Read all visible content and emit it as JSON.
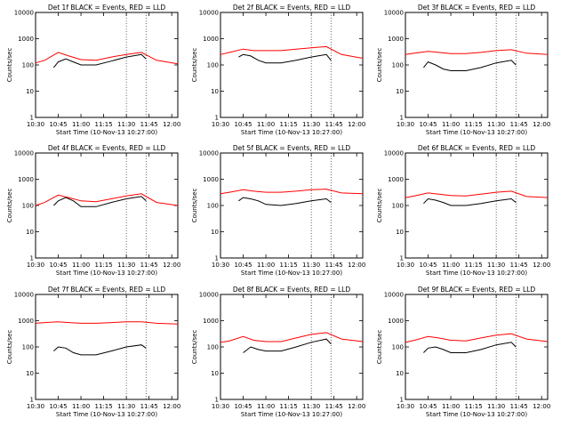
{
  "colors": {
    "events": "#000000",
    "lld": "#ff0000",
    "axis": "#000000",
    "background": "#ffffff"
  },
  "shared": {
    "xlabel": "Start Time (10-Nov-13 10:27:00)",
    "ylabel": "Counts/sec",
    "x_ticks": [
      "10:30",
      "10:45",
      "11:00",
      "11:15",
      "11:30",
      "11:45",
      "12:00"
    ],
    "x_range": [
      "10:30",
      "12:04"
    ],
    "y_ticks": [
      "1",
      "10",
      "100",
      "1000",
      "10000"
    ],
    "y_range": [
      1,
      10000
    ],
    "y_scale": "log"
  },
  "chart_data": [
    {
      "type": "line",
      "title": "Det 1f BLACK = Events, RED = LLD",
      "scale": 1.0,
      "series": [
        {
          "name": "Events",
          "points": [
            [
              "10:42",
              80
            ],
            [
              "10:45",
              130
            ],
            [
              "10:50",
              170
            ],
            [
              "10:55",
              130
            ],
            [
              "11:00",
              100
            ],
            [
              "11:10",
              100
            ],
            [
              "11:20",
              140
            ],
            [
              "11:30",
              200
            ],
            [
              "11:40",
              250
            ],
            [
              "11:43",
              170
            ]
          ]
        },
        {
          "name": "LLD",
          "points": [
            [
              "10:30",
              120
            ],
            [
              "10:36",
              150
            ],
            [
              "10:45",
              300
            ],
            [
              "10:52",
              220
            ],
            [
              "11:00",
              160
            ],
            [
              "11:10",
              150
            ],
            [
              "11:20",
              200
            ],
            [
              "11:30",
              250
            ],
            [
              "11:40",
              300
            ],
            [
              "11:50",
              150
            ],
            [
              "12:04",
              110
            ]
          ]
        }
      ]
    },
    {
      "type": "line",
      "title": "Det 2f BLACK = Events, RED = LLD",
      "scale": 1.0,
      "series": [
        {
          "name": "Events",
          "points": [
            [
              "10:42",
              200
            ],
            [
              "10:45",
              250
            ],
            [
              "10:50",
              220
            ],
            [
              "10:55",
              150
            ],
            [
              "11:00",
              120
            ],
            [
              "11:10",
              120
            ],
            [
              "11:20",
              150
            ],
            [
              "11:30",
              200
            ],
            [
              "11:40",
              250
            ],
            [
              "11:43",
              150
            ]
          ]
        },
        {
          "name": "LLD",
          "points": [
            [
              "10:30",
              250
            ],
            [
              "10:36",
              300
            ],
            [
              "10:45",
              400
            ],
            [
              "10:52",
              350
            ],
            [
              "11:00",
              350
            ],
            [
              "11:10",
              350
            ],
            [
              "11:20",
              400
            ],
            [
              "11:30",
              450
            ],
            [
              "11:40",
              500
            ],
            [
              "11:50",
              250
            ],
            [
              "12:04",
              180
            ]
          ]
        }
      ]
    },
    {
      "type": "line",
      "title": "Det 3f BLACK = Events, RED = LLD",
      "scale": 1.0,
      "series": [
        {
          "name": "Events",
          "points": [
            [
              "10:42",
              80
            ],
            [
              "10:45",
              130
            ],
            [
              "10:50",
              100
            ],
            [
              "10:55",
              70
            ],
            [
              "11:00",
              60
            ],
            [
              "11:10",
              60
            ],
            [
              "11:20",
              80
            ],
            [
              "11:30",
              120
            ],
            [
              "11:40",
              150
            ],
            [
              "11:43",
              100
            ]
          ]
        },
        {
          "name": "LLD",
          "points": [
            [
              "10:30",
              250
            ],
            [
              "10:36",
              280
            ],
            [
              "10:45",
              330
            ],
            [
              "10:52",
              300
            ],
            [
              "11:00",
              270
            ],
            [
              "11:10",
              270
            ],
            [
              "11:20",
              300
            ],
            [
              "11:30",
              350
            ],
            [
              "11:40",
              380
            ],
            [
              "11:50",
              280
            ],
            [
              "12:04",
              250
            ]
          ]
        }
      ]
    },
    {
      "type": "line",
      "title": "Det 4f BLACK = Events, RED = LLD",
      "scale": 1.0,
      "series": [
        {
          "name": "Events",
          "points": [
            [
              "10:42",
              100
            ],
            [
              "10:45",
              150
            ],
            [
              "10:50",
              200
            ],
            [
              "10:55",
              150
            ],
            [
              "11:00",
              90
            ],
            [
              "11:10",
              90
            ],
            [
              "11:20",
              130
            ],
            [
              "11:30",
              180
            ],
            [
              "11:40",
              220
            ],
            [
              "11:43",
              150
            ]
          ]
        },
        {
          "name": "LLD",
          "points": [
            [
              "10:30",
              100
            ],
            [
              "10:36",
              130
            ],
            [
              "10:45",
              250
            ],
            [
              "10:52",
              200
            ],
            [
              "11:00",
              150
            ],
            [
              "11:10",
              140
            ],
            [
              "11:20",
              180
            ],
            [
              "11:30",
              230
            ],
            [
              "11:40",
              280
            ],
            [
              "11:50",
              130
            ],
            [
              "12:04",
              100
            ]
          ]
        }
      ]
    },
    {
      "type": "line",
      "title": "Det 5f BLACK = Events, RED = LLD",
      "scale": 1.0,
      "series": [
        {
          "name": "Events",
          "points": [
            [
              "10:42",
              150
            ],
            [
              "10:45",
              200
            ],
            [
              "10:50",
              180
            ],
            [
              "10:55",
              150
            ],
            [
              "11:00",
              110
            ],
            [
              "11:10",
              100
            ],
            [
              "11:20",
              120
            ],
            [
              "11:30",
              150
            ],
            [
              "11:40",
              180
            ],
            [
              "11:43",
              130
            ]
          ]
        },
        {
          "name": "LLD",
          "points": [
            [
              "10:30",
              280
            ],
            [
              "10:36",
              320
            ],
            [
              "10:45",
              400
            ],
            [
              "10:52",
              350
            ],
            [
              "11:00",
              320
            ],
            [
              "11:10",
              320
            ],
            [
              "11:20",
              350
            ],
            [
              "11:30",
              400
            ],
            [
              "11:40",
              420
            ],
            [
              "11:50",
              300
            ],
            [
              "12:04",
              280
            ]
          ]
        }
      ]
    },
    {
      "type": "line",
      "title": "Det 6f BLACK = Events, RED = LLD",
      "scale": 1.0,
      "series": [
        {
          "name": "Events",
          "points": [
            [
              "10:42",
              120
            ],
            [
              "10:45",
              180
            ],
            [
              "10:50",
              160
            ],
            [
              "10:55",
              130
            ],
            [
              "11:00",
              100
            ],
            [
              "11:10",
              100
            ],
            [
              "11:20",
              120
            ],
            [
              "11:30",
              150
            ],
            [
              "11:40",
              180
            ],
            [
              "11:43",
              130
            ]
          ]
        },
        {
          "name": "LLD",
          "points": [
            [
              "10:30",
              200
            ],
            [
              "10:36",
              230
            ],
            [
              "10:45",
              300
            ],
            [
              "10:52",
              270
            ],
            [
              "11:00",
              240
            ],
            [
              "11:10",
              230
            ],
            [
              "11:20",
              270
            ],
            [
              "11:30",
              320
            ],
            [
              "11:40",
              350
            ],
            [
              "11:50",
              220
            ],
            [
              "12:04",
              200
            ]
          ]
        }
      ]
    },
    {
      "type": "line",
      "title": "Det 7f BLACK = Events, RED = LLD",
      "scale": 1.0,
      "series": [
        {
          "name": "Events",
          "points": [
            [
              "10:42",
              70
            ],
            [
              "10:45",
              100
            ],
            [
              "10:50",
              90
            ],
            [
              "10:55",
              60
            ],
            [
              "11:00",
              50
            ],
            [
              "11:10",
              50
            ],
            [
              "11:20",
              70
            ],
            [
              "11:30",
              100
            ],
            [
              "11:40",
              120
            ],
            [
              "11:43",
              90
            ]
          ]
        },
        {
          "name": "LLD",
          "points": [
            [
              "10:30",
              800
            ],
            [
              "10:36",
              850
            ],
            [
              "10:45",
              900
            ],
            [
              "10:52",
              850
            ],
            [
              "11:00",
              800
            ],
            [
              "11:10",
              800
            ],
            [
              "11:20",
              850
            ],
            [
              "11:30",
              900
            ],
            [
              "11:40",
              900
            ],
            [
              "11:50",
              800
            ],
            [
              "12:04",
              750
            ]
          ]
        }
      ]
    },
    {
      "type": "line",
      "title": "Det 8f BLACK = Events, RED = LLD",
      "scale": 1.0,
      "series": [
        {
          "name": "Events",
          "points": [
            [
              "10:45",
              60
            ],
            [
              "10:50",
              100
            ],
            [
              "10:55",
              80
            ],
            [
              "11:00",
              70
            ],
            [
              "11:10",
              70
            ],
            [
              "11:20",
              100
            ],
            [
              "11:30",
              150
            ],
            [
              "11:40",
              200
            ],
            [
              "11:43",
              130
            ]
          ]
        },
        {
          "name": "LLD",
          "points": [
            [
              "10:30",
              150
            ],
            [
              "10:36",
              170
            ],
            [
              "10:45",
              250
            ],
            [
              "10:52",
              180
            ],
            [
              "11:00",
              160
            ],
            [
              "11:10",
              160
            ],
            [
              "11:20",
              220
            ],
            [
              "11:30",
              300
            ],
            [
              "11:40",
              350
            ],
            [
              "11:50",
              200
            ],
            [
              "12:04",
              160
            ]
          ]
        }
      ]
    },
    {
      "type": "line",
      "title": "Det 9f BLACK = Events, RED = LLD",
      "scale": 1.0,
      "series": [
        {
          "name": "Events",
          "points": [
            [
              "10:42",
              60
            ],
            [
              "10:45",
              90
            ],
            [
              "10:50",
              100
            ],
            [
              "10:55",
              80
            ],
            [
              "11:00",
              60
            ],
            [
              "11:10",
              60
            ],
            [
              "11:20",
              80
            ],
            [
              "11:30",
              120
            ],
            [
              "11:40",
              150
            ],
            [
              "11:43",
              100
            ]
          ]
        },
        {
          "name": "LLD",
          "points": [
            [
              "10:30",
              150
            ],
            [
              "10:36",
              180
            ],
            [
              "10:45",
              250
            ],
            [
              "10:52",
              220
            ],
            [
              "11:00",
              180
            ],
            [
              "11:10",
              170
            ],
            [
              "11:20",
              220
            ],
            [
              "11:30",
              280
            ],
            [
              "11:40",
              320
            ],
            [
              "11:50",
              200
            ],
            [
              "12:04",
              160
            ]
          ]
        }
      ]
    }
  ]
}
